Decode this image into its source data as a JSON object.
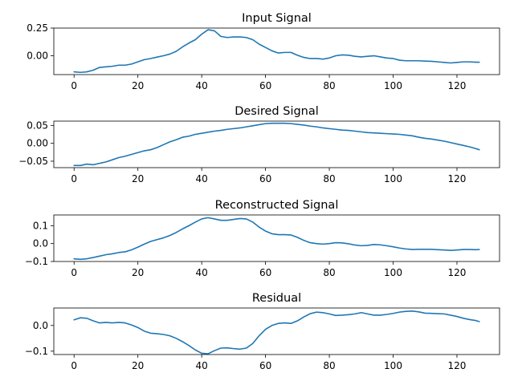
{
  "colors": {
    "line": "#1f77b4",
    "axis": "#000000",
    "background": "#ffffff"
  },
  "chart_data": [
    {
      "type": "line",
      "title": "Input Signal",
      "xlabel": "",
      "ylabel": "",
      "xlim": [
        -6.35,
        133.35
      ],
      "ylim": [
        -0.17,
        0.25
      ],
      "xticks": [
        0,
        20,
        40,
        60,
        80,
        100,
        120
      ],
      "yticks": [
        0.0,
        0.25
      ],
      "ytick_labels": [
        "0.00",
        "0.25"
      ],
      "grid": false,
      "series": [
        {
          "name": "Input Signal",
          "x": [
            0,
            2,
            4,
            6,
            8,
            10,
            12,
            14,
            16,
            18,
            20,
            22,
            24,
            26,
            28,
            30,
            32,
            34,
            36,
            38,
            40,
            42,
            44,
            46,
            48,
            50,
            52,
            54,
            56,
            58,
            60,
            62,
            64,
            66,
            68,
            70,
            72,
            74,
            76,
            78,
            80,
            82,
            84,
            86,
            88,
            90,
            92,
            94,
            96,
            98,
            100,
            102,
            104,
            106,
            108,
            110,
            112,
            114,
            116,
            118,
            120,
            122,
            124,
            126,
            127
          ],
          "y": [
            -0.145,
            -0.15,
            -0.145,
            -0.13,
            -0.105,
            -0.1,
            -0.095,
            -0.085,
            -0.085,
            -0.075,
            -0.055,
            -0.035,
            -0.025,
            -0.012,
            0.0,
            0.015,
            0.04,
            0.08,
            0.115,
            0.145,
            0.195,
            0.235,
            0.225,
            0.175,
            0.165,
            0.17,
            0.17,
            0.165,
            0.145,
            0.105,
            0.075,
            0.045,
            0.025,
            0.03,
            0.03,
            0.005,
            -0.015,
            -0.025,
            -0.025,
            -0.03,
            -0.02,
            0.0,
            0.008,
            0.005,
            -0.005,
            -0.01,
            -0.005,
            0.0,
            -0.01,
            -0.02,
            -0.025,
            -0.04,
            -0.045,
            -0.045,
            -0.045,
            -0.048,
            -0.05,
            -0.055,
            -0.06,
            -0.065,
            -0.06,
            -0.055,
            -0.055,
            -0.058,
            -0.058
          ]
        }
      ]
    },
    {
      "type": "line",
      "title": "Desired Signal",
      "xlabel": "",
      "ylabel": "",
      "xlim": [
        -6.35,
        133.35
      ],
      "ylim": [
        -0.068,
        0.062
      ],
      "xticks": [
        0,
        20,
        40,
        60,
        80,
        100,
        120
      ],
      "yticks": [
        -0.05,
        0.0,
        0.05
      ],
      "ytick_labels": [
        "−0.05",
        "0.00",
        "0.05"
      ],
      "grid": false,
      "series": [
        {
          "name": "Desired Signal",
          "x": [
            0,
            2,
            4,
            6,
            8,
            10,
            12,
            14,
            16,
            18,
            20,
            22,
            24,
            26,
            28,
            30,
            32,
            34,
            36,
            38,
            40,
            42,
            44,
            46,
            48,
            50,
            52,
            54,
            56,
            58,
            60,
            62,
            64,
            66,
            68,
            70,
            72,
            74,
            76,
            78,
            80,
            82,
            84,
            86,
            88,
            90,
            92,
            94,
            96,
            98,
            100,
            102,
            104,
            106,
            108,
            110,
            112,
            114,
            116,
            118,
            120,
            122,
            124,
            126,
            127
          ],
          "y": [
            -0.062,
            -0.062,
            -0.058,
            -0.06,
            -0.056,
            -0.052,
            -0.046,
            -0.04,
            -0.036,
            -0.031,
            -0.026,
            -0.021,
            -0.018,
            -0.012,
            -0.004,
            0.004,
            0.01,
            0.017,
            0.02,
            0.025,
            0.028,
            0.031,
            0.034,
            0.036,
            0.039,
            0.041,
            0.043,
            0.046,
            0.049,
            0.052,
            0.055,
            0.056,
            0.056,
            0.056,
            0.055,
            0.053,
            0.051,
            0.048,
            0.046,
            0.043,
            0.041,
            0.039,
            0.037,
            0.036,
            0.034,
            0.032,
            0.03,
            0.029,
            0.028,
            0.027,
            0.026,
            0.025,
            0.023,
            0.021,
            0.017,
            0.014,
            0.012,
            0.009,
            0.006,
            0.002,
            -0.002,
            -0.006,
            -0.01,
            -0.015,
            -0.018
          ]
        }
      ]
    },
    {
      "type": "line",
      "title": "Reconstructed Signal",
      "xlabel": "",
      "ylabel": "",
      "xlim": [
        -6.35,
        133.35
      ],
      "ylim": [
        -0.1,
        0.16
      ],
      "xticks": [
        0,
        20,
        40,
        60,
        80,
        100,
        120
      ],
      "yticks": [
        -0.1,
        0.0,
        0.1
      ],
      "ytick_labels": [
        "−0.1",
        "0.0",
        "0.1"
      ],
      "grid": false,
      "series": [
        {
          "name": "Reconstructed Signal",
          "x": [
            0,
            2,
            4,
            6,
            8,
            10,
            12,
            14,
            16,
            18,
            20,
            22,
            24,
            26,
            28,
            30,
            32,
            34,
            36,
            38,
            40,
            42,
            44,
            46,
            48,
            50,
            52,
            54,
            56,
            58,
            60,
            62,
            64,
            66,
            68,
            70,
            72,
            74,
            76,
            78,
            80,
            82,
            84,
            86,
            88,
            90,
            92,
            94,
            96,
            98,
            100,
            102,
            104,
            106,
            108,
            110,
            112,
            114,
            116,
            118,
            120,
            122,
            124,
            126,
            127
          ],
          "y": [
            -0.085,
            -0.088,
            -0.085,
            -0.078,
            -0.07,
            -0.062,
            -0.057,
            -0.05,
            -0.046,
            -0.035,
            -0.02,
            -0.003,
            0.012,
            0.022,
            0.032,
            0.045,
            0.062,
            0.082,
            0.1,
            0.12,
            0.138,
            0.145,
            0.138,
            0.13,
            0.13,
            0.135,
            0.14,
            0.138,
            0.12,
            0.092,
            0.07,
            0.055,
            0.05,
            0.05,
            0.048,
            0.035,
            0.018,
            0.005,
            0.0,
            -0.003,
            0.0,
            0.005,
            0.004,
            -0.001,
            -0.008,
            -0.012,
            -0.01,
            -0.005,
            -0.007,
            -0.012,
            -0.018,
            -0.025,
            -0.03,
            -0.033,
            -0.032,
            -0.032,
            -0.032,
            -0.034,
            -0.036,
            -0.038,
            -0.036,
            -0.033,
            -0.033,
            -0.034,
            -0.033
          ]
        }
      ]
    },
    {
      "type": "line",
      "title": "Residual",
      "xlabel": "",
      "ylabel": "",
      "xlim": [
        -6.35,
        133.35
      ],
      "ylim": [
        -0.113,
        0.068
      ],
      "xticks": [
        0,
        20,
        40,
        60,
        80,
        100,
        120
      ],
      "yticks": [
        -0.1,
        0.0
      ],
      "ytick_labels": [
        "−0.1",
        "0.0"
      ],
      "grid": false,
      "series": [
        {
          "name": "Residual",
          "x": [
            0,
            2,
            4,
            6,
            8,
            10,
            12,
            14,
            16,
            18,
            20,
            22,
            24,
            26,
            28,
            30,
            32,
            34,
            36,
            38,
            40,
            42,
            44,
            46,
            48,
            50,
            52,
            54,
            56,
            58,
            60,
            62,
            64,
            66,
            68,
            70,
            72,
            74,
            76,
            78,
            80,
            82,
            84,
            86,
            88,
            90,
            92,
            94,
            96,
            98,
            100,
            102,
            104,
            106,
            108,
            110,
            112,
            114,
            116,
            118,
            120,
            122,
            124,
            126,
            127
          ],
          "y": [
            0.022,
            0.03,
            0.028,
            0.018,
            0.01,
            0.012,
            0.01,
            0.012,
            0.01,
            0.002,
            -0.008,
            -0.022,
            -0.03,
            -0.032,
            -0.035,
            -0.04,
            -0.05,
            -0.063,
            -0.078,
            -0.095,
            -0.108,
            -0.11,
            -0.098,
            -0.088,
            -0.087,
            -0.09,
            -0.092,
            -0.088,
            -0.07,
            -0.04,
            -0.015,
            0.0,
            0.008,
            0.01,
            0.008,
            0.018,
            0.033,
            0.046,
            0.052,
            0.05,
            0.045,
            0.039,
            0.04,
            0.042,
            0.045,
            0.05,
            0.045,
            0.04,
            0.04,
            0.043,
            0.047,
            0.052,
            0.055,
            0.056,
            0.053,
            0.048,
            0.047,
            0.046,
            0.045,
            0.04,
            0.035,
            0.028,
            0.023,
            0.019,
            0.015
          ]
        }
      ]
    }
  ]
}
